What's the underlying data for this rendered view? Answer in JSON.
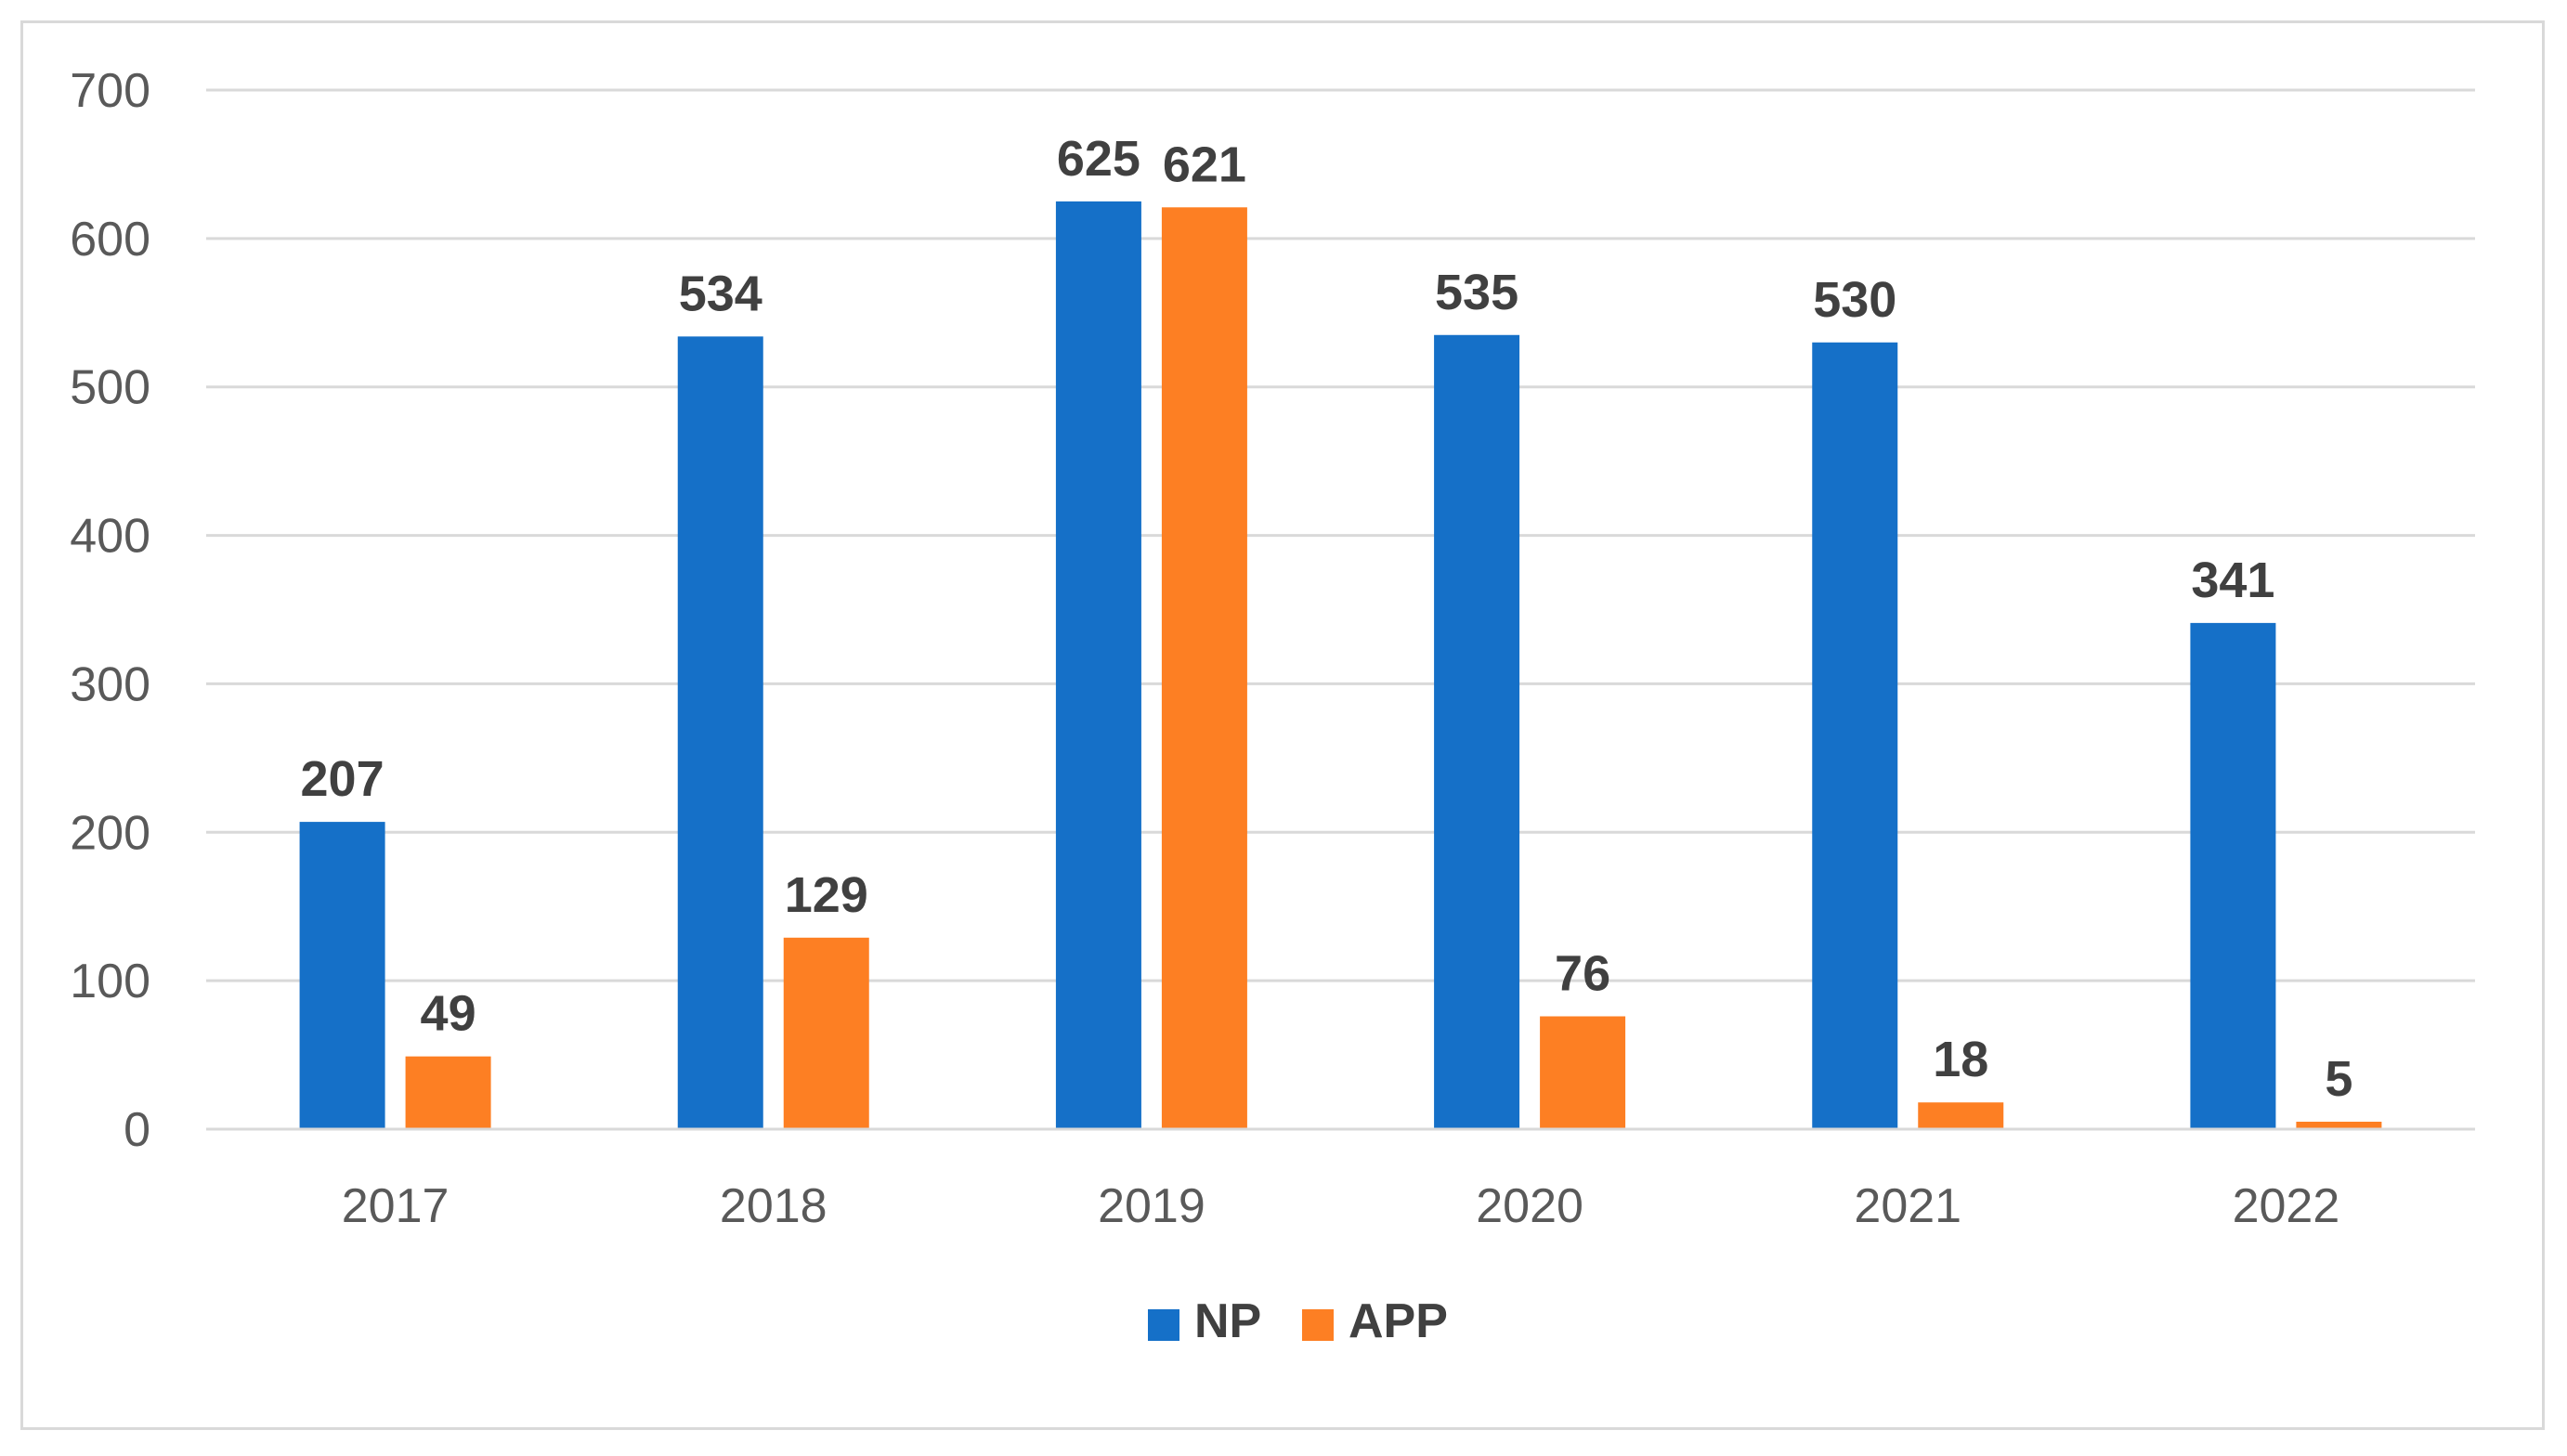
{
  "chart_data": {
    "type": "bar",
    "title": "",
    "xlabel": "",
    "ylabel": "",
    "categories": [
      "2017",
      "2018",
      "2019",
      "2020",
      "2021",
      "2022"
    ],
    "series": [
      {
        "name": "NP",
        "values": [
          207,
          534,
          625,
          535,
          530,
          341
        ],
        "color": "#1570c8"
      },
      {
        "name": "APP",
        "values": [
          49,
          129,
          621,
          76,
          18,
          5
        ],
        "color": "#fd7f23"
      }
    ],
    "ylim": [
      0,
      700
    ],
    "yticks": [
      0,
      100,
      200,
      300,
      400,
      500,
      600,
      700
    ],
    "grid": true,
    "legend_position": "bottom-center",
    "colors": {
      "grid": "#d9d9d9",
      "tick_text": "#595959",
      "label_text": "#404040"
    }
  }
}
